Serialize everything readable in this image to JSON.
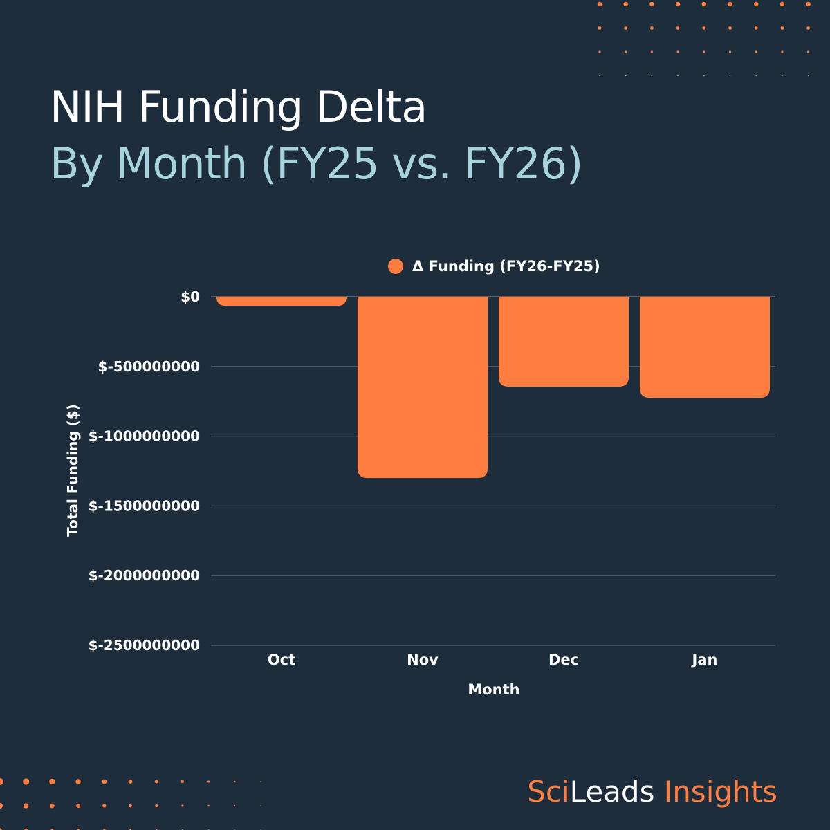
{
  "header": {
    "title": "NIH Funding Delta",
    "subtitle": "By Month (FY25 vs. FY26)"
  },
  "brand": {
    "part1": "Sci",
    "part2": "Leads",
    "part3": " Insights"
  },
  "colors": {
    "background": "#1e2d3c",
    "bar": "#ff7d3f",
    "subtitle": "#a6d3dc",
    "grid": "#4a5663"
  },
  "chart_data": {
    "type": "bar",
    "categories": [
      "Oct",
      "Nov",
      "Dec",
      "Jan"
    ],
    "series": [
      {
        "name": "Δ Funding (FY26-FY25)",
        "values": [
          -65000000,
          -1300000000,
          -645000000,
          -725000000
        ]
      }
    ],
    "xlabel": "Month",
    "ylabel": "Total Funding ($)",
    "ylim": [
      -2500000000,
      0
    ],
    "yticks": [
      0,
      -500000000,
      -1000000000,
      -1500000000,
      -2000000000,
      -2500000000
    ],
    "ytick_labels": [
      "$0",
      "$-500000000",
      "$-1000000000",
      "$-1500000000",
      "$-2000000000",
      "$-2500000000"
    ],
    "grid": true,
    "legend": "top-center"
  }
}
